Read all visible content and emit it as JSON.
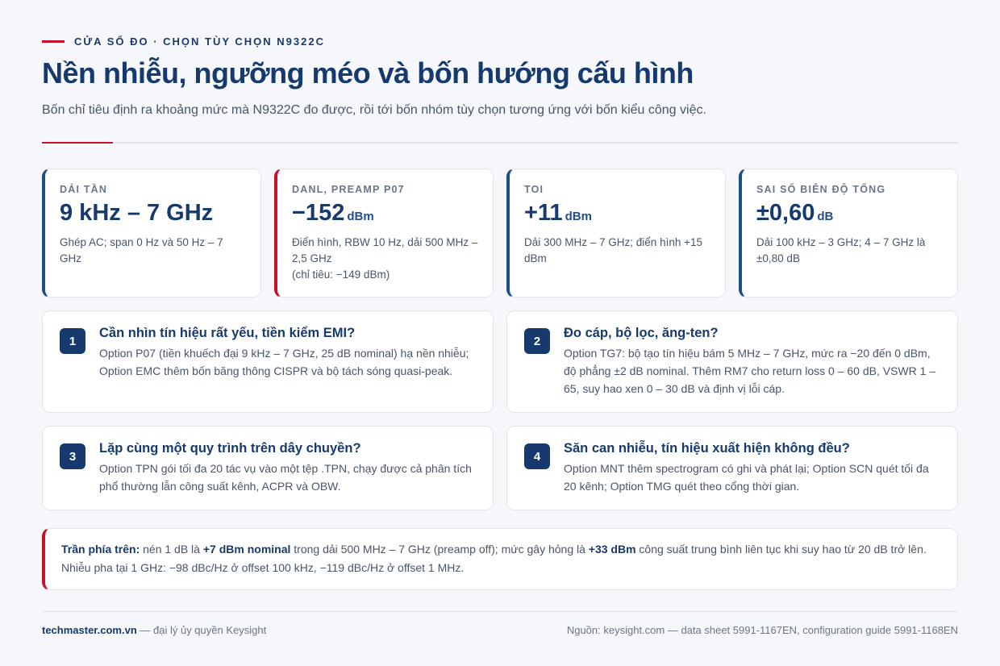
{
  "header": {
    "eyebrow": "CỬA SỔ ĐO · CHỌN TÙY CHỌN N9322C",
    "title": "Nền nhiễu, ngưỡng méo và bốn hướng cấu hình",
    "subtitle": "Bốn chỉ tiêu định ra khoảng mức mà N9322C đo được, rồi tới bốn nhóm tùy chọn tương ứng với bốn kiểu công việc."
  },
  "stats": [
    {
      "label": "DẢI TẦN",
      "value": "9 kHz – 7 GHz",
      "unit": "",
      "desc": "Ghép AC; span 0 Hz và 50 Hz – 7 GHz"
    },
    {
      "label": "DANL, PREAMP P07",
      "value": "−152",
      "unit": "dBm",
      "desc": "Điển hình, RBW 10 Hz, dải 500 MHz – 2,5 GHz",
      "desc2": "(chỉ tiêu: −149 dBm)"
    },
    {
      "label": "TOI",
      "value": "+11",
      "unit": "dBm",
      "desc": "Dải 300 MHz – 7 GHz; điển hình +15 dBm"
    },
    {
      "label": "SAI SỐ BIÊN ĐỘ TỔNG",
      "value": "±0,60",
      "unit": "dB",
      "desc": "Dải 100 kHz – 3 GHz; 4 – 7 GHz là ±0,80 dB"
    }
  ],
  "cards": [
    {
      "num": "1",
      "title": "Cần nhìn tín hiệu rất yếu, tiền kiểm EMI?",
      "desc": "Option P07 (tiền khuếch đại 9 kHz – 7 GHz, 25 dB nominal) hạ nền nhiễu; Option EMC thêm bốn băng thông CISPR và bộ tách sóng quasi-peak."
    },
    {
      "num": "2",
      "title": "Đo cáp, bộ lọc, ăng-ten?",
      "desc": "Option TG7: bộ tạo tín hiệu bám 5 MHz – 7 GHz, mức ra −20 đến 0 dBm, độ phẳng ±2 dB nominal. Thêm RM7 cho return loss 0 – 60 dB, VSWR 1 – 65, suy hao xen 0 – 30 dB và định vị lỗi cáp."
    },
    {
      "num": "3",
      "title": "Lặp cùng một quy trình trên dây chuyền?",
      "desc": "Option TPN gói tối đa 20 tác vụ vào một tệp .TPN, chạy được cả phân tích phổ thường lẫn công suất kênh, ACPR và OBW."
    },
    {
      "num": "4",
      "title": "Săn can nhiễu, tín hiệu xuất hiện không đều?",
      "desc": "Option MNT thêm spectrogram có ghi và phát lại; Option SCN quét tối đa 20 kênh; Option TMG quét theo cổng thời gian."
    }
  ],
  "note": {
    "lead": "Trần phía trên:",
    "t1": " nén 1 dB là ",
    "b1": "+7 dBm nominal",
    "t2": " trong dải 500 MHz – 7 GHz (preamp off); mức gây hỏng là ",
    "b2": "+33 dBm",
    "t3": " công suất trung bình liên tục khi suy hao từ 20 dB trở lên. Nhiễu pha tại 1 GHz: −98 dBc/Hz ở offset 100 kHz, −119 dBc/Hz ở offset 1 MHz."
  },
  "footer": {
    "site": "techmaster.com.vn",
    "tagline": " — đại lý ủy quyền Keysight",
    "source": "Nguồn: keysight.com — data sheet 5991-1167EN, configuration guide 5991-1168EN"
  }
}
